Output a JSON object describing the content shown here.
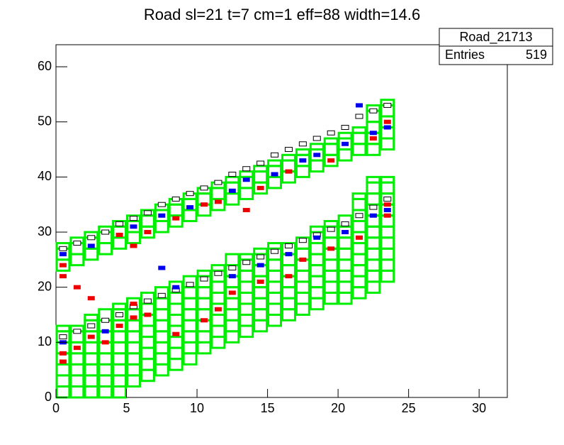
{
  "chart_data": {
    "type": "histogram2d",
    "title": "Road sl=21 t=7 cm=1 eff=88 width=14.6",
    "stats": {
      "name": "Road_21713",
      "entries_label": "Entries",
      "entries": 519
    },
    "xlim": [
      0,
      32
    ],
    "xticks": [
      0,
      5,
      10,
      15,
      20,
      25,
      30
    ],
    "ylim": [
      0,
      64
    ],
    "yticks": [
      0,
      10,
      20,
      30,
      40,
      50,
      60
    ],
    "roads": [
      {
        "color": "#00ee00",
        "x": [
          0,
          1,
          2,
          3,
          4,
          5,
          6,
          7,
          8,
          9,
          10,
          11,
          12,
          13,
          14,
          15,
          16,
          17,
          18,
          19,
          20,
          21,
          22,
          23
        ],
        "y_low": [
          23,
          24,
          25,
          26,
          27,
          28,
          29,
          30,
          31,
          32,
          33,
          34,
          35,
          36,
          37,
          38,
          39,
          40,
          41,
          42,
          43,
          44,
          44,
          45
        ],
        "y_high": [
          28,
          29,
          30,
          31,
          32,
          33,
          34,
          35,
          36,
          37,
          38,
          39,
          40,
          41,
          42,
          43,
          44,
          45,
          46,
          47,
          48,
          49,
          53,
          54
        ]
      },
      {
        "color": "#00ee00",
        "x": [
          0,
          1,
          2,
          3,
          4,
          5,
          6,
          7,
          8,
          9,
          10,
          11,
          12,
          13,
          14,
          15,
          16,
          17,
          18,
          19,
          20,
          21,
          22,
          23
        ],
        "y_low": [
          0,
          0,
          0,
          0,
          0,
          2,
          3,
          4,
          5,
          6,
          8,
          9,
          10,
          11,
          12,
          13,
          14,
          15,
          16,
          17,
          17,
          18,
          19,
          21
        ],
        "y_high": [
          13,
          13,
          15,
          16,
          17,
          18,
          19,
          20,
          21,
          22,
          23,
          24,
          26,
          26,
          27,
          28,
          28,
          29,
          31,
          32,
          33,
          37,
          40,
          40
        ]
      }
    ],
    "hits": [
      {
        "color": "#ffffff",
        "x": [
          0,
          1,
          2,
          3,
          4,
          5,
          6,
          7,
          8,
          9,
          10,
          11,
          12,
          13,
          14,
          15,
          16,
          17,
          18,
          19,
          20,
          21,
          22,
          23,
          0,
          1,
          2,
          3,
          4,
          5,
          6,
          7,
          8,
          9,
          10,
          11,
          12,
          13,
          14,
          15,
          16,
          17,
          18,
          19,
          20,
          21,
          22,
          23
        ],
        "y": [
          27,
          28,
          29,
          30,
          31.5,
          32.5,
          33.5,
          35,
          36,
          37,
          38,
          39,
          40.5,
          41.5,
          42.5,
          44,
          45,
          46,
          47,
          48,
          49,
          51,
          52,
          53,
          11,
          12,
          13,
          14,
          15,
          16.5,
          17.5,
          18.5,
          19.5,
          20.5,
          21.5,
          22.5,
          23.5,
          24.5,
          25.5,
          26.5,
          27.5,
          28.5,
          29.5,
          30.5,
          31.5,
          33,
          34.5,
          36
        ]
      },
      {
        "color": "#0000ee",
        "x": [
          0,
          2,
          5,
          7,
          9,
          12,
          13,
          15,
          17,
          18,
          20,
          22,
          23,
          21,
          0,
          3,
          8,
          12,
          14,
          16,
          18,
          20,
          22,
          23,
          7
        ],
        "y": [
          26,
          27.5,
          31,
          33,
          34.5,
          37.5,
          39.5,
          40.5,
          43,
          44,
          46,
          48,
          49,
          53,
          10,
          12,
          20,
          22,
          24,
          26,
          29,
          30,
          33,
          34,
          23.5
        ]
      },
      {
        "color": "#ee0000",
        "x": [
          0,
          0,
          0,
          1,
          2,
          3,
          4,
          5,
          6,
          8,
          10,
          11,
          12,
          14,
          16,
          17,
          19,
          21,
          23,
          23,
          0,
          4,
          5,
          6,
          8,
          10,
          11,
          14,
          16,
          19,
          22,
          23,
          2,
          5,
          13,
          1
        ],
        "y": [
          6.5,
          8,
          22,
          9,
          11,
          10,
          13,
          14.5,
          15,
          11.5,
          14,
          16,
          19,
          21,
          22,
          25,
          27,
          29,
          33,
          35,
          24,
          29.5,
          27.5,
          30,
          32.5,
          35,
          35.5,
          38,
          41,
          43,
          47,
          50,
          18,
          17,
          34,
          20
        ]
      }
    ]
  }
}
